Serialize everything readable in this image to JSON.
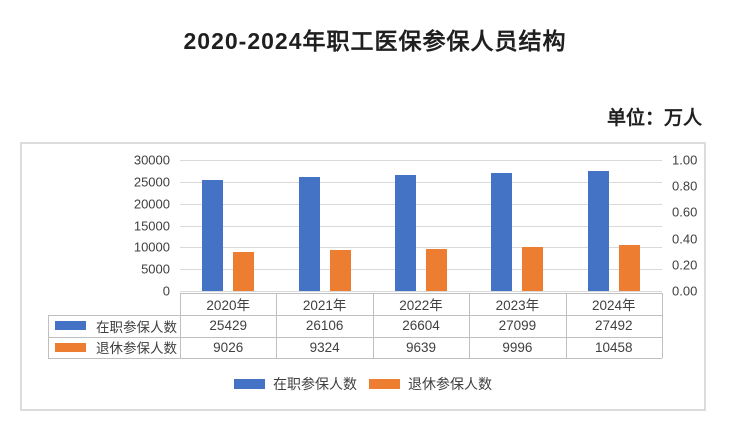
{
  "title": "2020-2024年职工医保参保人员结构",
  "unit_label": "单位：万人",
  "colors": {
    "series_active": "#4472C4",
    "series_retired": "#ED7D31",
    "gridline": "#D9D9D9",
    "table_border": "#BFBFBF",
    "axis_text": "#404040"
  },
  "chart_data": {
    "type": "bar",
    "title": "2020-2024年职工医保参保人员结构",
    "unit": "单位：万人",
    "categories": [
      "2020年",
      "2021年",
      "2022年",
      "2023年",
      "2024年"
    ],
    "series": [
      {
        "name": "在职参保人数",
        "color": "#4472C4",
        "values": [
          25429,
          26106,
          26604,
          27099,
          27492
        ]
      },
      {
        "name": "退休参保人数",
        "color": "#ED7D31",
        "values": [
          9026,
          9324,
          9639,
          9996,
          10458
        ]
      }
    ],
    "left_axis": {
      "min": 0,
      "max": 30000,
      "step": 5000,
      "ticks": [
        "0",
        "5000",
        "10000",
        "15000",
        "20000",
        "25000",
        "30000"
      ]
    },
    "right_axis": {
      "min": 0.0,
      "max": 1.0,
      "step": 0.2,
      "ticks": [
        "0.00",
        "0.20",
        "0.40",
        "0.60",
        "0.80",
        "1.00"
      ]
    },
    "grid": true,
    "legend_position": "bottom",
    "data_table_shown": true
  }
}
